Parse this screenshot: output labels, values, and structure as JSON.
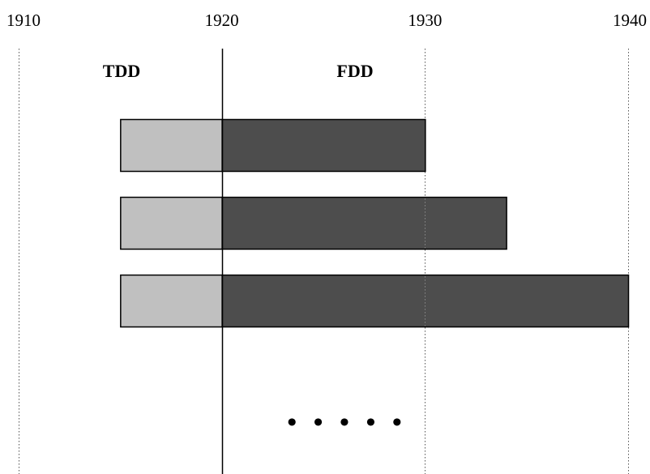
{
  "axis": {
    "ticks": [
      {
        "year": 1910,
        "label": "1910"
      },
      {
        "year": 1920,
        "label": "1920"
      },
      {
        "year": 1930,
        "label": "1930"
      },
      {
        "year": 1940,
        "label": "1940"
      }
    ],
    "range": [
      1910,
      1940
    ],
    "divider_year": 1920
  },
  "regions": {
    "left_label": "TDD",
    "right_label": "FDD"
  },
  "bars": [
    {
      "tdd_start": 1915,
      "fdd_start": 1920,
      "end": 1930
    },
    {
      "tdd_start": 1915,
      "fdd_start": 1920,
      "end": 1934
    },
    {
      "tdd_start": 1915,
      "fdd_start": 1920,
      "end": 1940
    }
  ],
  "ellipsis": "• • • • •",
  "colors": {
    "tdd_fill": "#c0c0c0",
    "fdd_fill": "#4d4d4d",
    "stroke": "#000000",
    "gridline": "#555555"
  }
}
